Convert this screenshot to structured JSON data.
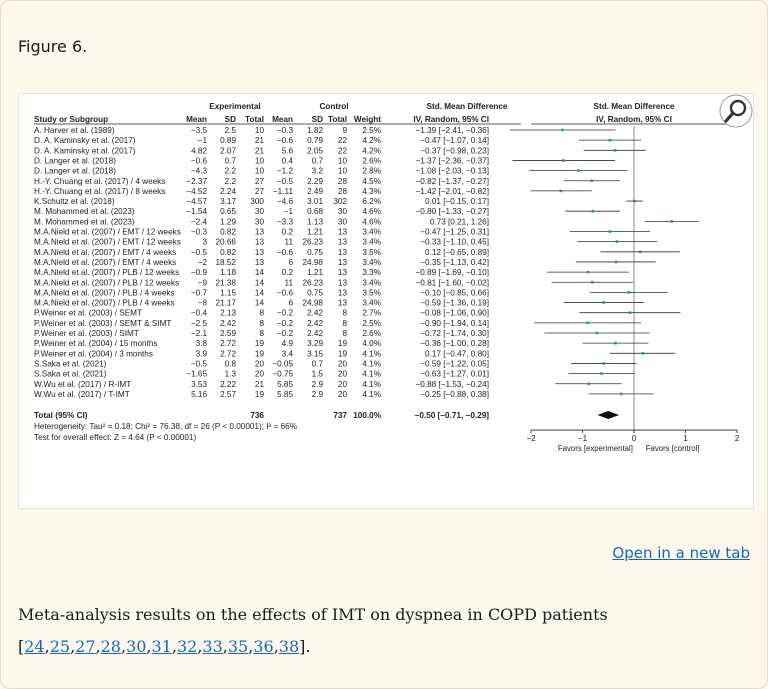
{
  "figure_label": "Figure 6.",
  "open_new_tab": "Open in a new tab",
  "caption": {
    "text": "Meta-analysis results on the effects of IMT on dyspnea in COPD patients",
    "refs": [
      "24",
      "25",
      "27",
      "28",
      "30",
      "31",
      "32",
      "33",
      "35",
      "36",
      "38"
    ]
  },
  "icons": {
    "zoom": "magnifier-icon"
  },
  "colors": {
    "link": "#1565c0",
    "background": "#fdf8ec",
    "point": "#2e9e4c"
  },
  "chart_data": {
    "type": "table",
    "group_headers": {
      "experimental": "Experimental",
      "control": "Control",
      "smd": "Std. Mean Difference",
      "plot_header": "Std. Mean Difference"
    },
    "columns": [
      "Study or Subgroup",
      "Mean",
      "SD",
      "Total",
      "Mean",
      "SD",
      "Total",
      "Weight",
      "IV, Random, 95% CI"
    ],
    "plot_subheader": "IV, Random, 95% CI",
    "rows": [
      {
        "study": "A. Harver et al. (1989)",
        "em": "−3.5",
        "esd": "2.5",
        "et": "10",
        "cm": "−0.3",
        "csd": "1.82",
        "ct": "9",
        "w": "2.5%",
        "ci": "−1.39 [−2.41, −0.36]",
        "est": -1.39,
        "lo": -2.41,
        "hi": -0.36
      },
      {
        "study": "D. A. Kaminsky et al. (2017)",
        "em": "−1",
        "esd": "0.89",
        "et": "21",
        "cm": "−0.6",
        "csd": "0.79",
        "ct": "22",
        "w": "4.2%",
        "ci": "−0.47 [−1.07, 0.14]",
        "est": -0.47,
        "lo": -1.07,
        "hi": 0.14
      },
      {
        "study": "D. A. Kaminsky et al. (2017)",
        "em": "4.82",
        "esd": "2.07",
        "et": "21",
        "cm": "5.6",
        "csd": "2.05",
        "ct": "22",
        "w": "4.2%",
        "ci": "−0.37 [−0.98, 0.23]",
        "est": -0.37,
        "lo": -0.98,
        "hi": 0.23
      },
      {
        "study": "D. Langer et al. (2018)",
        "em": "−0.6",
        "esd": "0.7",
        "et": "10",
        "cm": "0.4",
        "csd": "0.7",
        "ct": "10",
        "w": "2.6%",
        "ci": "−1.37 [−2.36, −0.37]",
        "est": -1.37,
        "lo": -2.36,
        "hi": -0.37
      },
      {
        "study": "D. Langer et al. (2018)",
        "em": "−4.3",
        "esd": "2.2",
        "et": "10",
        "cm": "−1.2",
        "csd": "3.2",
        "ct": "10",
        "w": "2.8%",
        "ci": "−1.08 [−2.03, −0.13]",
        "est": -1.08,
        "lo": -2.03,
        "hi": -0.13
      },
      {
        "study": "H.-Y. Chuang et al. (2017) / 4 weeks",
        "em": "−2.37",
        "esd": "2.2",
        "et": "27",
        "cm": "−0.5",
        "csd": "2.29",
        "ct": "28",
        "w": "4.5%",
        "ci": "−0.82 [−1.37, −0.27]",
        "est": -0.82,
        "lo": -1.37,
        "hi": -0.27
      },
      {
        "study": "H.-Y. Chuang et al. (2017) / 8 weeks",
        "em": "−4.52",
        "esd": "2.24",
        "et": "27",
        "cm": "−1.11",
        "csd": "2.49",
        "ct": "28",
        "w": "4.3%",
        "ci": "−1.42 [−2.01, −0.82]",
        "est": -1.42,
        "lo": -2.01,
        "hi": -0.82
      },
      {
        "study": "K.Schultz et al. (2018)",
        "em": "−4.57",
        "esd": "3.17",
        "et": "300",
        "cm": "−4.6",
        "csd": "3.01",
        "ct": "302",
        "w": "6.2%",
        "ci": "0.01 [−0.15, 0.17]",
        "est": 0.01,
        "lo": -0.15,
        "hi": 0.17
      },
      {
        "study": "M. Mohammed et al. (2023)",
        "em": "−1.54",
        "esd": "0.65",
        "et": "30",
        "cm": "−1",
        "csd": "0.68",
        "ct": "30",
        "w": "4.6%",
        "ci": "−0.80 [−1.33, −0.27]",
        "est": -0.8,
        "lo": -1.33,
        "hi": -0.27
      },
      {
        "study": "M. Mohammed et al. (2023)",
        "em": "−2.4",
        "esd": "1.29",
        "et": "30",
        "cm": "−3.3",
        "csd": "1.13",
        "ct": "30",
        "w": "4.6%",
        "ci": "0.73 [0.21, 1.26]",
        "est": 0.73,
        "lo": 0.21,
        "hi": 1.26
      },
      {
        "study": "M.A.Nield et al. (2007) / EMT / 12 weeks",
        "em": "−0.3",
        "esd": "0.82",
        "et": "13",
        "cm": "0.2",
        "csd": "1.21",
        "ct": "13",
        "w": "3.4%",
        "ci": "−0.47 [−1.25, 0.31]",
        "est": -0.47,
        "lo": -1.25,
        "hi": 0.31
      },
      {
        "study": "M.A.Nield et al. (2007) / EMT / 12 weeks",
        "em": "3",
        "esd": "20.66",
        "et": "13",
        "cm": "11",
        "csd": "26.23",
        "ct": "13",
        "w": "3.4%",
        "ci": "−0.33 [−1.10, 0.45]",
        "est": -0.33,
        "lo": -1.1,
        "hi": 0.45
      },
      {
        "study": "M.A.Nield et al. (2007) / EMT / 4 weeks",
        "em": "−0.5",
        "esd": "0.82",
        "et": "13",
        "cm": "−0.6",
        "csd": "0.75",
        "ct": "13",
        "w": "3.5%",
        "ci": "0.12 [−0.65, 0.89]",
        "est": 0.12,
        "lo": -0.65,
        "hi": 0.89
      },
      {
        "study": "M.A.Nield et al. (2007) / EMT / 4 weeks",
        "em": "−2",
        "esd": "18.52",
        "et": "13",
        "cm": "6",
        "csd": "24.98",
        "ct": "13",
        "w": "3.4%",
        "ci": "−0.35 [−1.13, 0.42]",
        "est": -0.35,
        "lo": -1.13,
        "hi": 0.42
      },
      {
        "study": "M.A.Nield et al. (2007) / PLB / 12 weeks",
        "em": "−0.9",
        "esd": "1.18",
        "et": "14",
        "cm": "0.2",
        "csd": "1.21",
        "ct": "13",
        "w": "3.3%",
        "ci": "−0.89 [−1.69, −0.10]",
        "est": -0.89,
        "lo": -1.69,
        "hi": -0.1
      },
      {
        "study": "M.A.Nield et al. (2007) / PLB / 12 weeks",
        "em": "−9",
        "esd": "21.38",
        "et": "14",
        "cm": "11",
        "csd": "26.23",
        "ct": "13",
        "w": "3.4%",
        "ci": "−0.81 [−1.60, −0.02]",
        "est": -0.81,
        "lo": -1.6,
        "hi": -0.02
      },
      {
        "study": "M.A.Nield et al. (2007) / PLB / 4 weeks",
        "em": "−0.7",
        "esd": "1.15",
        "et": "14",
        "cm": "−0.6",
        "csd": "0.75",
        "ct": "13",
        "w": "3.5%",
        "ci": "−0.10 [−0.85, 0.66]",
        "est": -0.1,
        "lo": -0.85,
        "hi": 0.66
      },
      {
        "study": "M.A.Nield et al. (2007) / PLB / 4 weeks",
        "em": "−8",
        "esd": "21.17",
        "et": "14",
        "cm": "6",
        "csd": "24.98",
        "ct": "13",
        "w": "3.4%",
        "ci": "−0.59 [−1.36, 0.19]",
        "est": -0.59,
        "lo": -1.36,
        "hi": 0.19
      },
      {
        "study": "P.Weiner et al. (2003) / SEMT",
        "em": "−0.4",
        "esd": "2.13",
        "et": "8",
        "cm": "−0.2",
        "csd": "2.42",
        "ct": "8",
        "w": "2.7%",
        "ci": "−0.08 [−1.06, 0.90]",
        "est": -0.08,
        "lo": -1.06,
        "hi": 0.9
      },
      {
        "study": "P.Weiner et al. (2003) / SEMT & SIMT",
        "em": "−2.5",
        "esd": "2.42",
        "et": "8",
        "cm": "−0.2",
        "csd": "2.42",
        "ct": "8",
        "w": "2.5%",
        "ci": "−0.90 [−1.94, 0.14]",
        "est": -0.9,
        "lo": -1.94,
        "hi": 0.14
      },
      {
        "study": "P.Weiner et al. (2003) / SIMT",
        "em": "−2.1",
        "esd": "2.59",
        "et": "8",
        "cm": "−0.2",
        "csd": "2.42",
        "ct": "8",
        "w": "2.6%",
        "ci": "−0.72 [−1.74, 0.30]",
        "est": -0.72,
        "lo": -1.74,
        "hi": 0.3
      },
      {
        "study": "P.Weiner et al. (2004) / 15 months",
        "em": "3.8",
        "esd": "2.72",
        "et": "19",
        "cm": "4.9",
        "csd": "3.29",
        "ct": "19",
        "w": "4.0%",
        "ci": "−0.36 [−1.00, 0.28]",
        "est": -0.36,
        "lo": -1.0,
        "hi": 0.28
      },
      {
        "study": "P.Weiner et al. (2004) / 3 months",
        "em": "3.9",
        "esd": "2.72",
        "et": "19",
        "cm": "3.4",
        "csd": "3.15",
        "ct": "19",
        "w": "4.1%",
        "ci": "0.17 [−0.47, 0.80]",
        "est": 0.17,
        "lo": -0.47,
        "hi": 0.8
      },
      {
        "study": "S.Saka et al. (2021)",
        "em": "−0.5",
        "esd": "0.8",
        "et": "20",
        "cm": "−0.05",
        "csd": "0.7",
        "ct": "20",
        "w": "4.1%",
        "ci": "−0.59 [−1.22, 0.05]",
        "est": -0.59,
        "lo": -1.22,
        "hi": 0.05
      },
      {
        "study": "S.Saka et al. (2021)",
        "em": "−1.65",
        "esd": "1.3",
        "et": "20",
        "cm": "−0.75",
        "csd": "1.5",
        "ct": "20",
        "w": "4.1%",
        "ci": "−0.63 [−1.27, 0.01]",
        "est": -0.63,
        "lo": -1.27,
        "hi": 0.01
      },
      {
        "study": "W.Wu et al. (2017) / R-IMT",
        "em": "3.53",
        "esd": "2.22",
        "et": "21",
        "cm": "5.85",
        "csd": "2.9",
        "ct": "20",
        "w": "4.1%",
        "ci": "−0.88 [−1.53, −0.24]",
        "est": -0.88,
        "lo": -1.53,
        "hi": -0.24
      },
      {
        "study": "W.Wu et al. (2017) / T-IMT",
        "em": "5.16",
        "esd": "2.57",
        "et": "19",
        "cm": "5.85",
        "csd": "2.9",
        "ct": "20",
        "w": "4.1%",
        "ci": "−0.25 [−0.88, 0.38]",
        "est": -0.25,
        "lo": -0.88,
        "hi": 0.38
      }
    ],
    "total": {
      "label": "Total (95% CI)",
      "et": "736",
      "ct": "737",
      "w": "100.0%",
      "ci": "−0.50 [−0.71, −0.29]",
      "est": -0.5,
      "lo": -0.71,
      "hi": -0.29
    },
    "heterogeneity": "Heterogeneity: Tau² = 0.18; Chi² = 76.38, df = 26 (P < 0.00001); I² = 66%",
    "overall_effect": "Test for overall effect: Z = 4.64 (P < 0.00001)",
    "xlim": [
      -2,
      2
    ],
    "xticks": [
      -2,
      -1,
      0,
      1,
      2
    ],
    "xtick_labels": [
      "−2",
      "−1",
      "0",
      "1",
      "2"
    ],
    "favors_left": "Favors [experimental]",
    "favors_right": "Favors [control]"
  }
}
